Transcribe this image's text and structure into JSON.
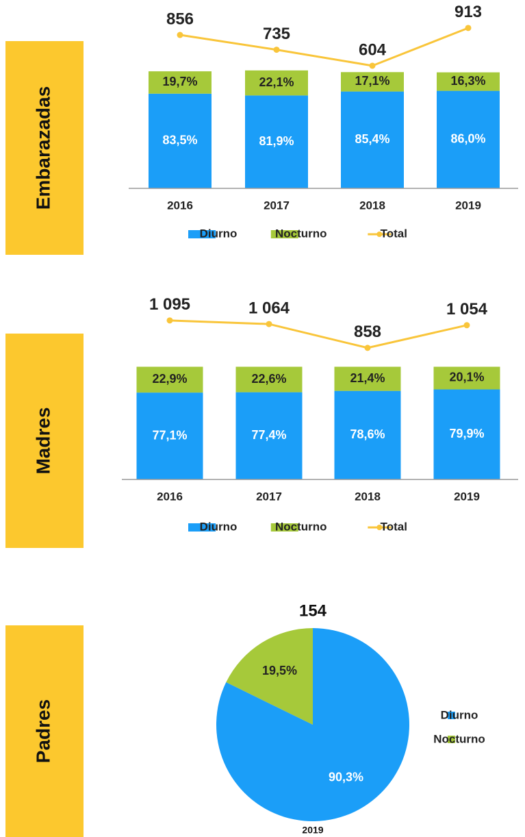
{
  "chart_data": [
    {
      "type": "bar",
      "stacked": true,
      "title": "Embarazadas",
      "categories": [
        "2016",
        "2017",
        "2018",
        "2019"
      ],
      "ylim": [
        0,
        154
      ],
      "y2lim": [
        -400,
        1030
      ],
      "series": [
        {
          "name": "Diurno",
          "color": "#1b9ef8",
          "values": [
            83.5,
            81.9,
            85.4,
            86.0
          ],
          "value_labels": [
            "83,5%",
            "81,9%",
            "85,4%",
            "86,0%"
          ]
        },
        {
          "name": "Nocturno",
          "color": "#a6c93a",
          "values": [
            19.7,
            22.1,
            17.1,
            16.3
          ],
          "value_labels": [
            "19,7%",
            "22,1%",
            "17,1%",
            "16,3%"
          ]
        },
        {
          "name": "Total",
          "type": "line",
          "axis": "y2",
          "color": "#f9c53a",
          "values": [
            856,
            735,
            604,
            913
          ]
        }
      ]
    },
    {
      "type": "bar",
      "stacked": true,
      "title": "Madres",
      "categories": [
        "2016",
        "2017",
        "2018",
        "2019"
      ],
      "ylim": [
        0,
        158
      ],
      "y2lim": [
        -280,
        1260
      ],
      "series": [
        {
          "name": "Diurno",
          "color": "#1b9ef8",
          "values": [
            77.1,
            77.4,
            78.6,
            79.9
          ],
          "value_labels": [
            "77,1%",
            "77,4%",
            "78,6%",
            "79,9%"
          ]
        },
        {
          "name": "Nocturno",
          "color": "#a6c93a",
          "values": [
            22.9,
            22.6,
            21.4,
            20.1
          ],
          "value_labels": [
            "22,9%",
            "22,6%",
            "21,4%",
            "20,1%"
          ]
        },
        {
          "name": "Total",
          "type": "line",
          "axis": "y2",
          "color": "#f9c53a",
          "values": [
            1095,
            1064,
            858,
            1054
          ],
          "value_labels": [
            "1 095",
            "1 064",
            "858",
            "1 054"
          ]
        }
      ]
    },
    {
      "type": "pie",
      "title": "Padres",
      "total": 154,
      "category": "2019",
      "series": [
        {
          "name": "Diurno",
          "color": "#1b9ef8",
          "values": [
            90.3
          ],
          "value_labels": [
            "90,3%"
          ]
        },
        {
          "name": "Nocturno",
          "color": "#a6c93a",
          "values": [
            19.5
          ],
          "value_labels": [
            "19,5%"
          ]
        }
      ]
    }
  ]
}
